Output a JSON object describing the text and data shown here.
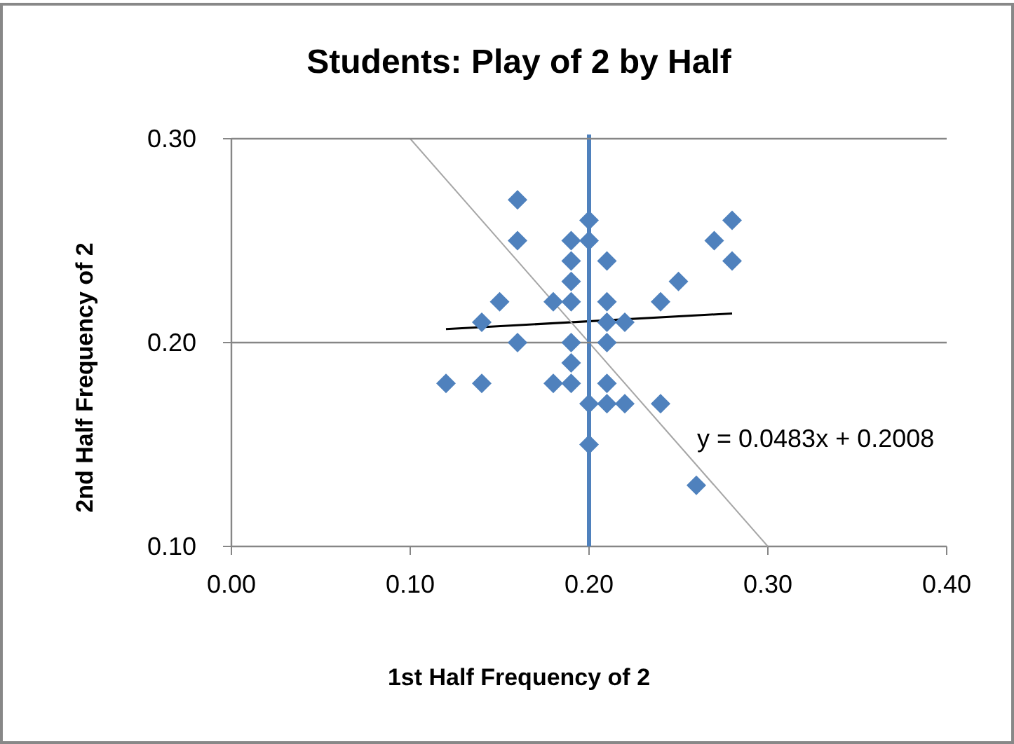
{
  "chart_data": {
    "type": "scatter",
    "title": "Students: Play of 2 by Half",
    "xlabel": "1st Half Frequency of 2",
    "ylabel": "2nd Half Frequency of 2",
    "xlim": [
      0,
      0.4
    ],
    "xticks": [
      {
        "value": 0,
        "label": "0.00"
      },
      {
        "value": 0.1,
        "label": "0.10"
      },
      {
        "value": 0.2,
        "label": "0.20"
      },
      {
        "value": 0.3,
        "label": "0.30"
      },
      {
        "value": 0.4,
        "label": "0.40"
      }
    ],
    "ylim": [
      0.1,
      0.3
    ],
    "yticks": [
      {
        "value": 0.1,
        "label": "0.10"
      },
      {
        "value": 0.2,
        "label": "0.20"
      },
      {
        "value": 0.3,
        "label": "0.30"
      }
    ],
    "grid": false,
    "series": [
      {
        "marker": "diamond",
        "color": "#4f81bd",
        "x": [
          0.16,
          0.16,
          0.19,
          0.2,
          0.2,
          0.19,
          0.21,
          0.19,
          0.15,
          0.18,
          0.19,
          0.21,
          0.24,
          0.25,
          0.27,
          0.28,
          0.28,
          0.14,
          0.21,
          0.22,
          0.16,
          0.19,
          0.21,
          0.19,
          0.12,
          0.14,
          0.18,
          0.19,
          0.21,
          0.2,
          0.21,
          0.22,
          0.24,
          0.2,
          0.26
        ],
        "values": [
          0.27,
          0.25,
          0.25,
          0.26,
          0.25,
          0.24,
          0.24,
          0.23,
          0.22,
          0.22,
          0.22,
          0.22,
          0.22,
          0.23,
          0.25,
          0.26,
          0.24,
          0.21,
          0.21,
          0.21,
          0.2,
          0.2,
          0.2,
          0.19,
          0.18,
          0.18,
          0.18,
          0.18,
          0.18,
          0.17,
          0.17,
          0.17,
          0.17,
          0.15,
          0.13
        ]
      },
      {
        "type": "line",
        "color": "#000000",
        "x": [
          0.12,
          0.28
        ],
        "values": [
          0.2066,
          0.2143
        ]
      },
      {
        "type": "line",
        "color": "#a6a6a6",
        "x": [
          0.1,
          0.3
        ],
        "values": [
          0.3,
          0.1
        ]
      }
    ],
    "ref_lines": [
      {
        "axis": "x",
        "value": 0.2,
        "color": "#4f81bd"
      },
      {
        "axis": "y",
        "value": 0.2,
        "color": "#868686"
      }
    ],
    "annotations": [
      "y = 0.0483x + 0.2008"
    ]
  }
}
